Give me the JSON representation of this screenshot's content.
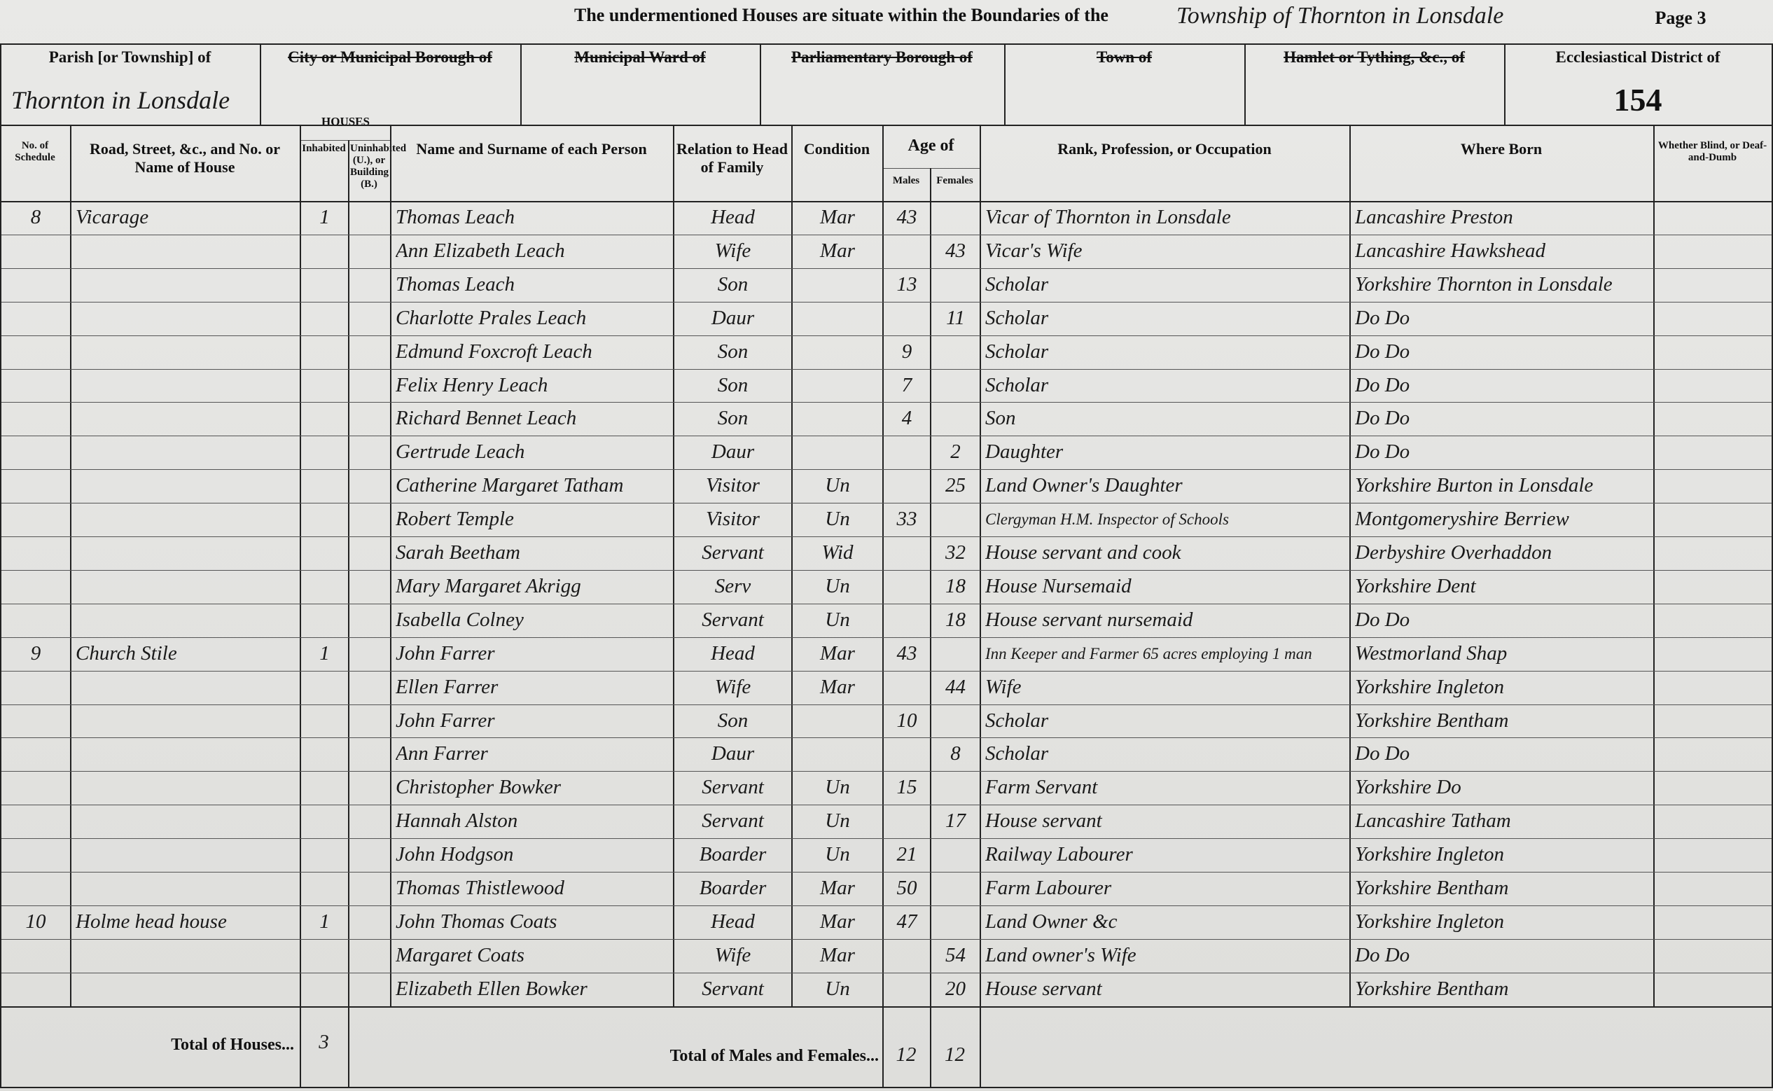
{
  "header": {
    "statement": "The undermentioned Houses are situate within the Boundaries of the",
    "place": "Township of Thornton in Lonsdale",
    "page": "Page 3",
    "fields": [
      {
        "label": "Parish [or Township] of",
        "value": "Thornton in Lonsdale"
      },
      {
        "label": "City or Municipal Borough of",
        "struck": true
      },
      {
        "label": "Municipal Ward of",
        "struck": true
      },
      {
        "label": "Parliamentary Borough of",
        "struck": true
      },
      {
        "label": "Town of",
        "struck": true
      },
      {
        "label": "Hamlet or Tything, &c., of",
        "struck": true
      },
      {
        "label": "Ecclesiastical District of",
        "value": "154"
      }
    ]
  },
  "houses_heading": "HOUSES",
  "age_heading": "Age of",
  "columns": [
    "No. of Schedule",
    "Road, Street, &c., and No. or Name of House",
    "Inhabited",
    "Uninhabited (U.), or Building (B.)",
    "Name and Surname of each Person",
    "Relation to Head of Family",
    "Condition",
    "Males",
    "Females",
    "Rank, Profession, or Occupation",
    "Where Born",
    "Whether Blind, or Deaf-and-Dumb"
  ],
  "rows": [
    {
      "schedule": "8",
      "house": "Vicarage",
      "inhabited": "1",
      "name": "Thomas Leach",
      "relation": "Head",
      "condition": "Mar",
      "males": 43,
      "occupation": "Vicar of Thornton in Lonsdale",
      "where_born": "Lancashire Preston"
    },
    {
      "name": "Ann Elizabeth Leach",
      "relation": "Wife",
      "condition": "Mar",
      "females": 43,
      "occupation": "Vicar's Wife",
      "where_born": "Lancashire Hawkshead"
    },
    {
      "name": "Thomas Leach",
      "relation": "Son",
      "males": 13,
      "occupation": "Scholar",
      "where_born": "Yorkshire Thornton in Lonsdale"
    },
    {
      "name": "Charlotte Prales Leach",
      "relation": "Daur",
      "females": 11,
      "occupation": "Scholar",
      "where_born": "Do Do"
    },
    {
      "name": "Edmund Foxcroft Leach",
      "relation": "Son",
      "males": 9,
      "occupation": "Scholar",
      "where_born": "Do Do"
    },
    {
      "name": "Felix Henry Leach",
      "relation": "Son",
      "males": 7,
      "occupation": "Scholar",
      "where_born": "Do Do"
    },
    {
      "name": "Richard Bennet Leach",
      "relation": "Son",
      "males": 4,
      "occupation": "Son",
      "where_born": "Do Do"
    },
    {
      "name": "Gertrude Leach",
      "relation": "Daur",
      "females": 2,
      "occupation": "Daughter",
      "where_born": "Do Do"
    },
    {
      "name": "Catherine Margaret Tatham",
      "relation": "Visitor",
      "condition": "Un",
      "females": 25,
      "occupation": "Land Owner's Daughter",
      "where_born": "Yorkshire Burton in Lonsdale"
    },
    {
      "name": "Robert Temple",
      "relation": "Visitor",
      "condition": "Un",
      "males": 33,
      "occupation": "Clergyman H.M. Inspector of Schools",
      "where_born": "Montgomeryshire Berriew"
    },
    {
      "name": "Sarah Beetham",
      "relation": "Servant",
      "condition": "Wid",
      "females": 32,
      "occupation": "House servant and cook",
      "where_born": "Derbyshire Overhaddon"
    },
    {
      "name": "Mary Margaret Akrigg",
      "relation": "Serv",
      "condition": "Un",
      "females": 18,
      "occupation": "House Nursemaid",
      "where_born": "Yorkshire Dent"
    },
    {
      "name": "Isabella Colney",
      "relation": "Servant",
      "condition": "Un",
      "females": 18,
      "occupation": "House servant nursemaid",
      "where_born": "Do Do"
    },
    {
      "schedule": "9",
      "house": "Church Stile",
      "inhabited": "1",
      "name": "John Farrer",
      "relation": "Head",
      "condition": "Mar",
      "males": 43,
      "occupation": "Inn Keeper and Farmer 65 acres employing 1 man",
      "where_born": "Westmorland Shap"
    },
    {
      "name": "Ellen Farrer",
      "relation": "Wife",
      "condition": "Mar",
      "females": 44,
      "occupation": "Wife",
      "where_born": "Yorkshire Ingleton"
    },
    {
      "name": "John Farrer",
      "relation": "Son",
      "males": 10,
      "occupation": "Scholar",
      "where_born": "Yorkshire Bentham"
    },
    {
      "name": "Ann Farrer",
      "relation": "Daur",
      "females": 8,
      "occupation": "Scholar",
      "where_born": "Do Do"
    },
    {
      "name": "Christopher Bowker",
      "relation": "Servant",
      "condition": "Un",
      "males": 15,
      "occupation": "Farm Servant",
      "where_born": "Yorkshire Do"
    },
    {
      "name": "Hannah Alston",
      "relation": "Servant",
      "condition": "Un",
      "females": 17,
      "occupation": "House servant",
      "where_born": "Lancashire Tatham"
    },
    {
      "name": "John Hodgson",
      "relation": "Boarder",
      "condition": "Un",
      "males": 21,
      "occupation": "Railway Labourer",
      "where_born": "Yorkshire Ingleton"
    },
    {
      "name": "Thomas Thistlewood",
      "relation": "Boarder",
      "condition": "Mar",
      "males": 50,
      "occupation": "Farm Labourer",
      "where_born": "Yorkshire Bentham"
    },
    {
      "schedule": "10",
      "house": "Holme head house",
      "inhabited": "1",
      "name": "John Thomas Coats",
      "relation": "Head",
      "condition": "Mar",
      "males": 47,
      "occupation": "Land Owner &c",
      "where_born": "Yorkshire Ingleton"
    },
    {
      "name": "Margaret Coats",
      "relation": "Wife",
      "condition": "Mar",
      "females": 54,
      "occupation": "Land owner's Wife",
      "where_born": "Do Do"
    },
    {
      "name": "Elizabeth Ellen Bowker",
      "relation": "Servant",
      "condition": "Un",
      "females": 20,
      "occupation": "House servant",
      "where_born": "Yorkshire Bentham"
    }
  ],
  "totals": {
    "houses_label": "Total of Houses...",
    "houses": 3,
    "persons_label": "Total of Males and Females...",
    "males": 12,
    "females": 12
  }
}
